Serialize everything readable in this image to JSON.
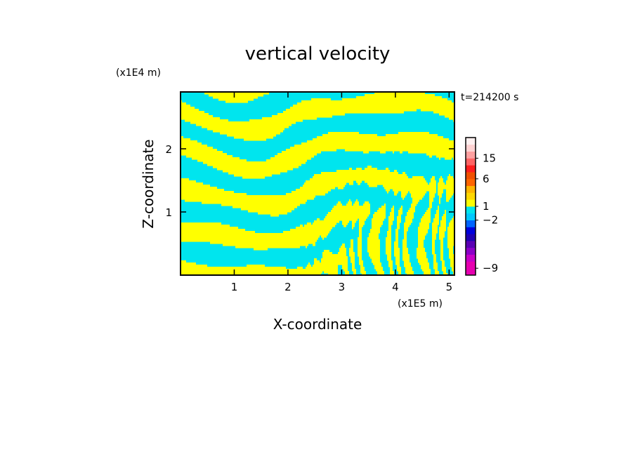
{
  "chart_data": {
    "type": "heatmap",
    "title": "vertical velocity",
    "xlabel": "X-coordinate",
    "ylabel": "Z-coordinate",
    "x_unit": "(x1E5 m)",
    "y_unit": "(x1E4 m)",
    "time_label": "t=214200 s",
    "xlim": [
      0,
      5.1
    ],
    "ylim": [
      0,
      2.9
    ],
    "x_ticks": [
      1,
      2,
      3,
      4,
      5
    ],
    "y_ticks": [
      1,
      2
    ],
    "fill_colors": {
      "positive": "#ffff00",
      "negative": "#00e5ee"
    },
    "colorbar": {
      "labels": [
        {
          "text": "15",
          "level": 15
        },
        {
          "text": "6",
          "level": 6
        },
        {
          "text": "1",
          "level": 1
        },
        {
          "text": "−2",
          "level": -2
        },
        {
          "text": "−9",
          "level": -9
        }
      ],
      "segments": [
        {
          "color": "#e600b0"
        },
        {
          "color": "#e600b0"
        },
        {
          "color": "#c800c8"
        },
        {
          "color": "#8c00c8"
        },
        {
          "color": "#5a00b4"
        },
        {
          "color": "#1e00b4"
        },
        {
          "color": "#0000dc"
        },
        {
          "color": "#0064ff"
        },
        {
          "color": "#00c8ff"
        },
        {
          "color": "#00e5ee"
        },
        {
          "color": "#ffff00"
        },
        {
          "color": "#ffd700"
        },
        {
          "color": "#ffb400"
        },
        {
          "color": "#ff6400"
        },
        {
          "color": "#f05000"
        },
        {
          "color": "#ff1e1e"
        },
        {
          "color": "#ff6464"
        },
        {
          "color": "#ffa0a0"
        },
        {
          "color": "#ffd2d2"
        },
        {
          "color": "#fff0f0"
        }
      ]
    }
  }
}
